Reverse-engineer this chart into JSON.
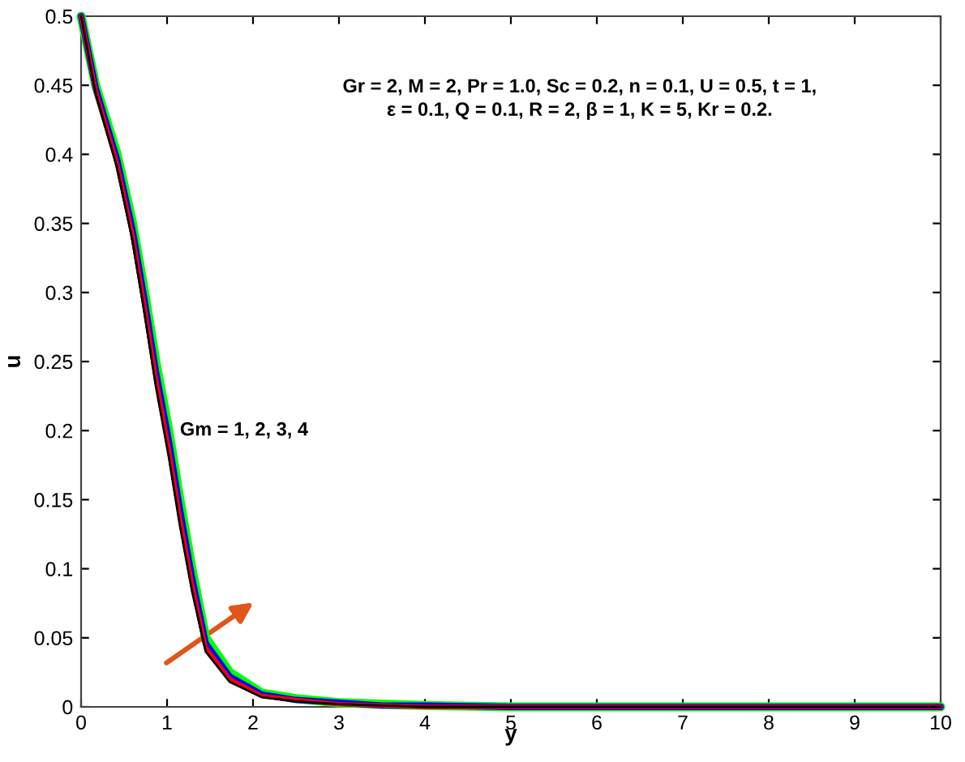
{
  "chart_data": {
    "type": "line",
    "xlabel": "y",
    "ylabel": "u",
    "annotations": [
      "Gr = 2, M = 2, Pr = 1.0, Sc = 0.2, n = 0.1, U = 0.5, t = 1,\nε = 0.1, Q = 0.1, R = 2, β = 1, K = 5, Kr = 0.2.",
      "Gm = 1, 2, 3, 4"
    ],
    "x": [
      0,
      0.17,
      0.42,
      0.6,
      0.74,
      0.87,
      1.02,
      1.15,
      1.29,
      1.45,
      1.73,
      2.1,
      2.5,
      3,
      3.5,
      4,
      5,
      6,
      8,
      10
    ],
    "series": [
      {
        "color": "#000000",
        "values": [
          0.5,
          0.444,
          0.39,
          0.337,
          0.284,
          0.232,
          0.181,
          0.131,
          0.084,
          0.04,
          0.018,
          0.007,
          0.004,
          0.002,
          0.001,
          0,
          0,
          0,
          0,
          0
        ]
      },
      {
        "color": "#ff0000",
        "values": [
          0.5,
          0.446,
          0.393,
          0.341,
          0.289,
          0.238,
          0.187,
          0.137,
          0.089,
          0.043,
          0.02,
          0.008,
          0.005,
          0.002,
          0.001,
          0,
          0,
          0,
          0,
          0
        ]
      },
      {
        "color": "#0000ff",
        "values": [
          0.5,
          0.448,
          0.396,
          0.345,
          0.294,
          0.243,
          0.193,
          0.143,
          0.094,
          0.046,
          0.022,
          0.009,
          0.005,
          0.003,
          0.001,
          0.001,
          0,
          0,
          0,
          0
        ]
      },
      {
        "color": "#00ff00",
        "values": [
          0.5,
          0.45,
          0.4,
          0.35,
          0.3,
          0.25,
          0.2,
          0.15,
          0.1,
          0.05,
          0.025,
          0.01,
          0.006,
          0.003,
          0.002,
          0.001,
          0,
          0,
          0,
          0
        ]
      }
    ],
    "xlim": [
      0,
      10
    ],
    "ylim": [
      0,
      0.5
    ],
    "xticks": [
      0,
      1,
      2,
      3,
      4,
      5,
      6,
      7,
      8,
      9,
      10
    ],
    "yticks": [
      0,
      0.05,
      0.1,
      0.15,
      0.2,
      0.25,
      0.3,
      0.35,
      0.4,
      0.45,
      0.5
    ],
    "grid": false,
    "legend": false,
    "marker": "none",
    "line_style": "solid"
  }
}
